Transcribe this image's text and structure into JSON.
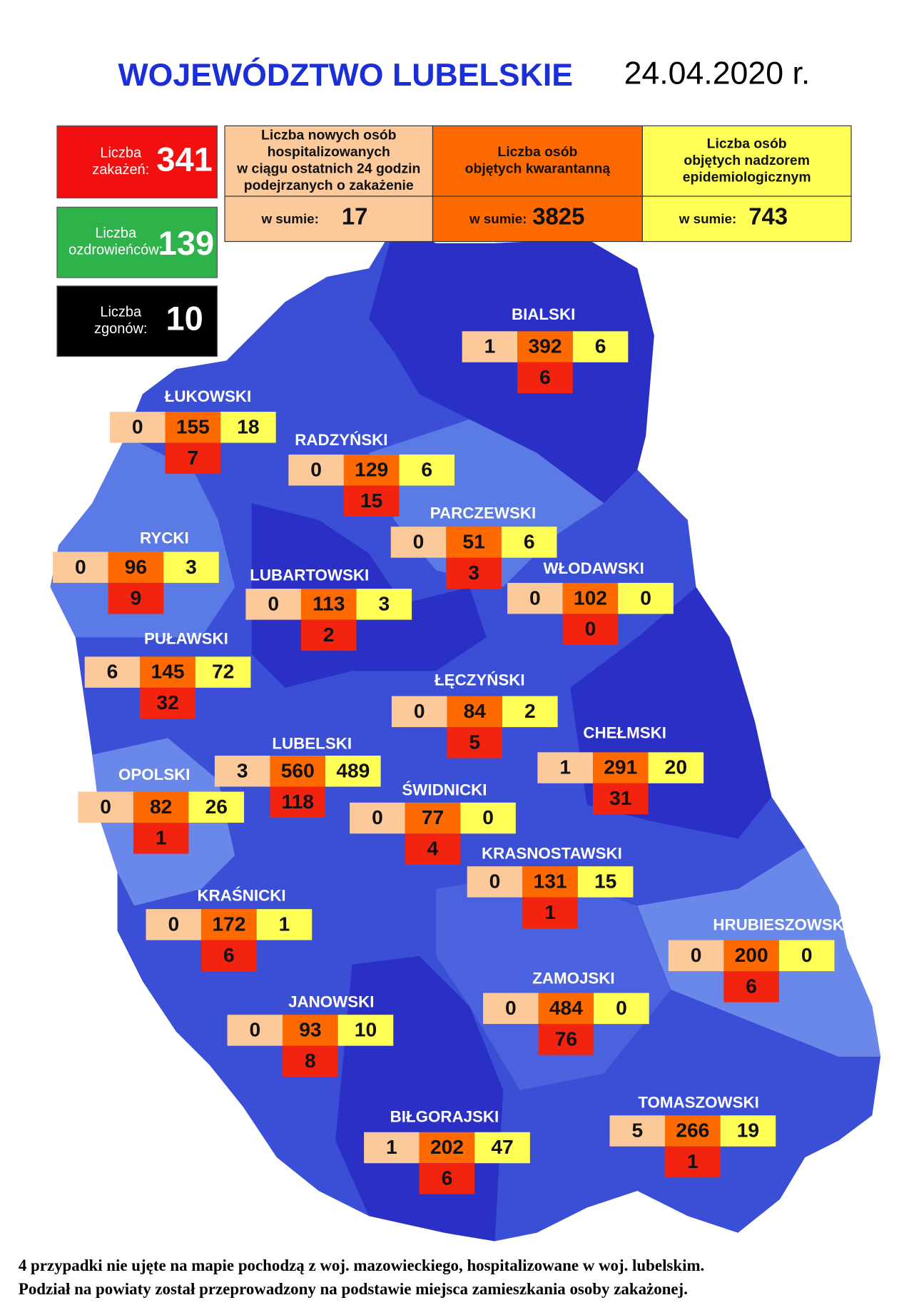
{
  "header": {
    "title": "WOJEWÓDZTWO LUBELSKIE",
    "date": "24.04.2020 r."
  },
  "summary": [
    {
      "lines": [
        "Liczba",
        "zakażeń:"
      ],
      "value": "341"
    },
    {
      "lines": [
        "Liczba",
        "ozdrowieńców:"
      ],
      "value": "139"
    },
    {
      "lines": [
        "Liczba",
        "zgonów:"
      ],
      "value": "10"
    }
  ],
  "table": [
    {
      "lines": [
        "Liczba nowych osób",
        "hospitalizowanych",
        "w ciągu ostatnich 24 godzin",
        "podejrzanych o zakażenie"
      ],
      "sum_label": "w sumie:",
      "sum": "17"
    },
    {
      "lines": [
        "Liczba osób",
        "objętych kwarantanną"
      ],
      "sum_label": "w sumie:",
      "sum": "3825"
    },
    {
      "lines": [
        "Liczba osób",
        "objętych nadzorem",
        "epidemiologicznym"
      ],
      "sum_label": "w sumie:",
      "sum": "743"
    }
  ],
  "districts": [
    {
      "name": "BIALSKI",
      "hospitalized": "1",
      "quarantine": "392",
      "supervision": "6",
      "cases": "6"
    },
    {
      "name": "ŁUKOWSKI",
      "hospitalized": "0",
      "quarantine": "155",
      "supervision": "18",
      "cases": "7"
    },
    {
      "name": "RADZYŃSKI",
      "hospitalized": "0",
      "quarantine": "129",
      "supervision": "6",
      "cases": "15"
    },
    {
      "name": "PARCZEWSKI",
      "hospitalized": "0",
      "quarantine": "51",
      "supervision": "6",
      "cases": "3"
    },
    {
      "name": "RYCKI",
      "hospitalized": "0",
      "quarantine": "96",
      "supervision": "3",
      "cases": "9"
    },
    {
      "name": "WŁODAWSKI",
      "hospitalized": "0",
      "quarantine": "102",
      "supervision": "0",
      "cases": "0"
    },
    {
      "name": "LUBARTOWSKI",
      "hospitalized": "0",
      "quarantine": "113",
      "supervision": "3",
      "cases": "2"
    },
    {
      "name": "PUŁAWSKI",
      "hospitalized": "6",
      "quarantine": "145",
      "supervision": "72",
      "cases": "32"
    },
    {
      "name": "ŁĘCZYŃSKI",
      "hospitalized": "0",
      "quarantine": "84",
      "supervision": "2",
      "cases": "5"
    },
    {
      "name": "CHEŁMSKI",
      "hospitalized": "1",
      "quarantine": "291",
      "supervision": "20",
      "cases": "31"
    },
    {
      "name": "LUBELSKI",
      "hospitalized": "3",
      "quarantine": "560",
      "supervision": "489",
      "cases": "118"
    },
    {
      "name": "OPOLSKI",
      "hospitalized": "0",
      "quarantine": "82",
      "supervision": "26",
      "cases": "1"
    },
    {
      "name": "ŚWIDNICKI",
      "hospitalized": "0",
      "quarantine": "77",
      "supervision": "0",
      "cases": "4"
    },
    {
      "name": "KRASNOSTAWSKI",
      "hospitalized": "0",
      "quarantine": "131",
      "supervision": "15",
      "cases": "1"
    },
    {
      "name": "KRAŚNICKI",
      "hospitalized": "0",
      "quarantine": "172",
      "supervision": "1",
      "cases": "6"
    },
    {
      "name": "HRUBIESZOWSKI",
      "hospitalized": "0",
      "quarantine": "200",
      "supervision": "0",
      "cases": "6"
    },
    {
      "name": "ZAMOJSKI",
      "hospitalized": "0",
      "quarantine": "484",
      "supervision": "0",
      "cases": "76"
    },
    {
      "name": "JANOWSKI",
      "hospitalized": "0",
      "quarantine": "93",
      "supervision": "10",
      "cases": "8"
    },
    {
      "name": "TOMASZOWSKI",
      "hospitalized": "5",
      "quarantine": "266",
      "supervision": "19",
      "cases": "1"
    },
    {
      "name": "BIŁGORAJSKI",
      "hospitalized": "1",
      "quarantine": "202",
      "supervision": "47",
      "cases": "6"
    }
  ],
  "footer": [
    "4 przypadki nie ujęte na mapie pochodzą z woj. mazowieckiego, hospitalizowane w woj. lubelskim.",
    "Podział na powiaty został przeprowadzony na podstawie miejsca zamieszkania osoby zakażonej."
  ]
}
